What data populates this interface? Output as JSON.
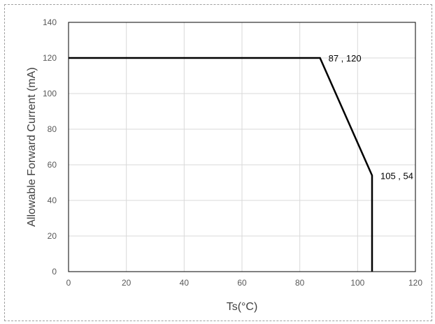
{
  "chart_data": {
    "type": "line",
    "title": "",
    "xlabel": "Ts(°C)",
    "ylabel": "Allowable Forward Current (mA)",
    "xlim": [
      0,
      120
    ],
    "ylim": [
      0,
      140
    ],
    "xticks": [
      0,
      20,
      40,
      60,
      80,
      100,
      120
    ],
    "yticks": [
      0,
      20,
      40,
      60,
      80,
      100,
      120,
      140
    ],
    "grid": true,
    "legend": "none",
    "series": [
      {
        "x": [
          0,
          87,
          105,
          105
        ],
        "y": [
          120,
          120,
          54,
          0
        ]
      }
    ],
    "annotations": [
      {
        "text": "87 , 120",
        "x": 87,
        "y": 120
      },
      {
        "text": "105 , 54",
        "x": 105,
        "y": 54
      }
    ],
    "colors": {
      "line": "#000000",
      "grid": "#d9d9d9",
      "axis": "#000000",
      "tick_text": "#595959",
      "frame": "#a0a0a0"
    }
  }
}
